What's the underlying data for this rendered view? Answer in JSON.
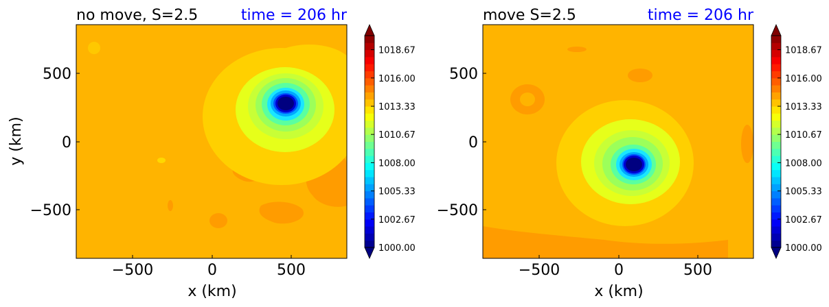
{
  "chart_data": [
    {
      "type": "heatmap",
      "title": "no move, S=2.5",
      "title_right": "time = 206 hr",
      "title_right_color": "#0000ff",
      "xlabel": "x (km)",
      "ylabel": "y (km)",
      "xlim": [
        -850,
        850
      ],
      "ylim": [
        -850,
        850
      ],
      "xticks": [
        -500,
        0,
        500
      ],
      "yticks": [
        -500,
        0,
        500
      ],
      "xtick_labels": [
        "−500",
        "0",
        "500"
      ],
      "ytick_labels": [
        "−500",
        "0",
        "500"
      ],
      "field": "pressure",
      "background_value": 1015.3,
      "vortex_center_km": [
        465,
        275
      ],
      "min_value": 1000.0,
      "colorbar": {
        "min": 1000.0,
        "max": 1020.0,
        "ticks": [
          1000.0,
          1002.67,
          1005.33,
          1008.0,
          1010.67,
          1013.33,
          1016.0,
          1018.67
        ],
        "tick_labels": [
          "1000.00",
          "1002.67",
          "1005.33",
          "1008.00",
          "1010.67",
          "1013.33",
          "1016.00",
          "1018.67"
        ],
        "extend": "both",
        "colormap": "jet"
      }
    },
    {
      "type": "heatmap",
      "title": "move S=2.5",
      "title_right": "time = 206 hr",
      "title_right_color": "#0000ff",
      "xlabel": "x (km)",
      "ylabel": "",
      "xlim": [
        -850,
        850
      ],
      "ylim": [
        -850,
        850
      ],
      "xticks": [
        -500,
        0,
        500
      ],
      "yticks": [
        -500,
        0,
        500
      ],
      "xtick_labels": [
        "−500",
        "0",
        "500"
      ],
      "ytick_labels": [
        "−500",
        "0",
        "500"
      ],
      "field": "pressure",
      "background_value": 1015.3,
      "vortex_center_km": [
        100,
        -165
      ],
      "min_value": 1000.0,
      "colorbar": {
        "min": 1000.0,
        "max": 1020.0,
        "ticks": [
          1000.0,
          1002.67,
          1005.33,
          1008.0,
          1010.67,
          1013.33,
          1016.0,
          1018.67
        ],
        "tick_labels": [
          "1000.00",
          "1002.67",
          "1005.33",
          "1008.00",
          "1010.67",
          "1013.33",
          "1016.00",
          "1018.67"
        ],
        "extend": "both",
        "colormap": "jet"
      }
    }
  ]
}
